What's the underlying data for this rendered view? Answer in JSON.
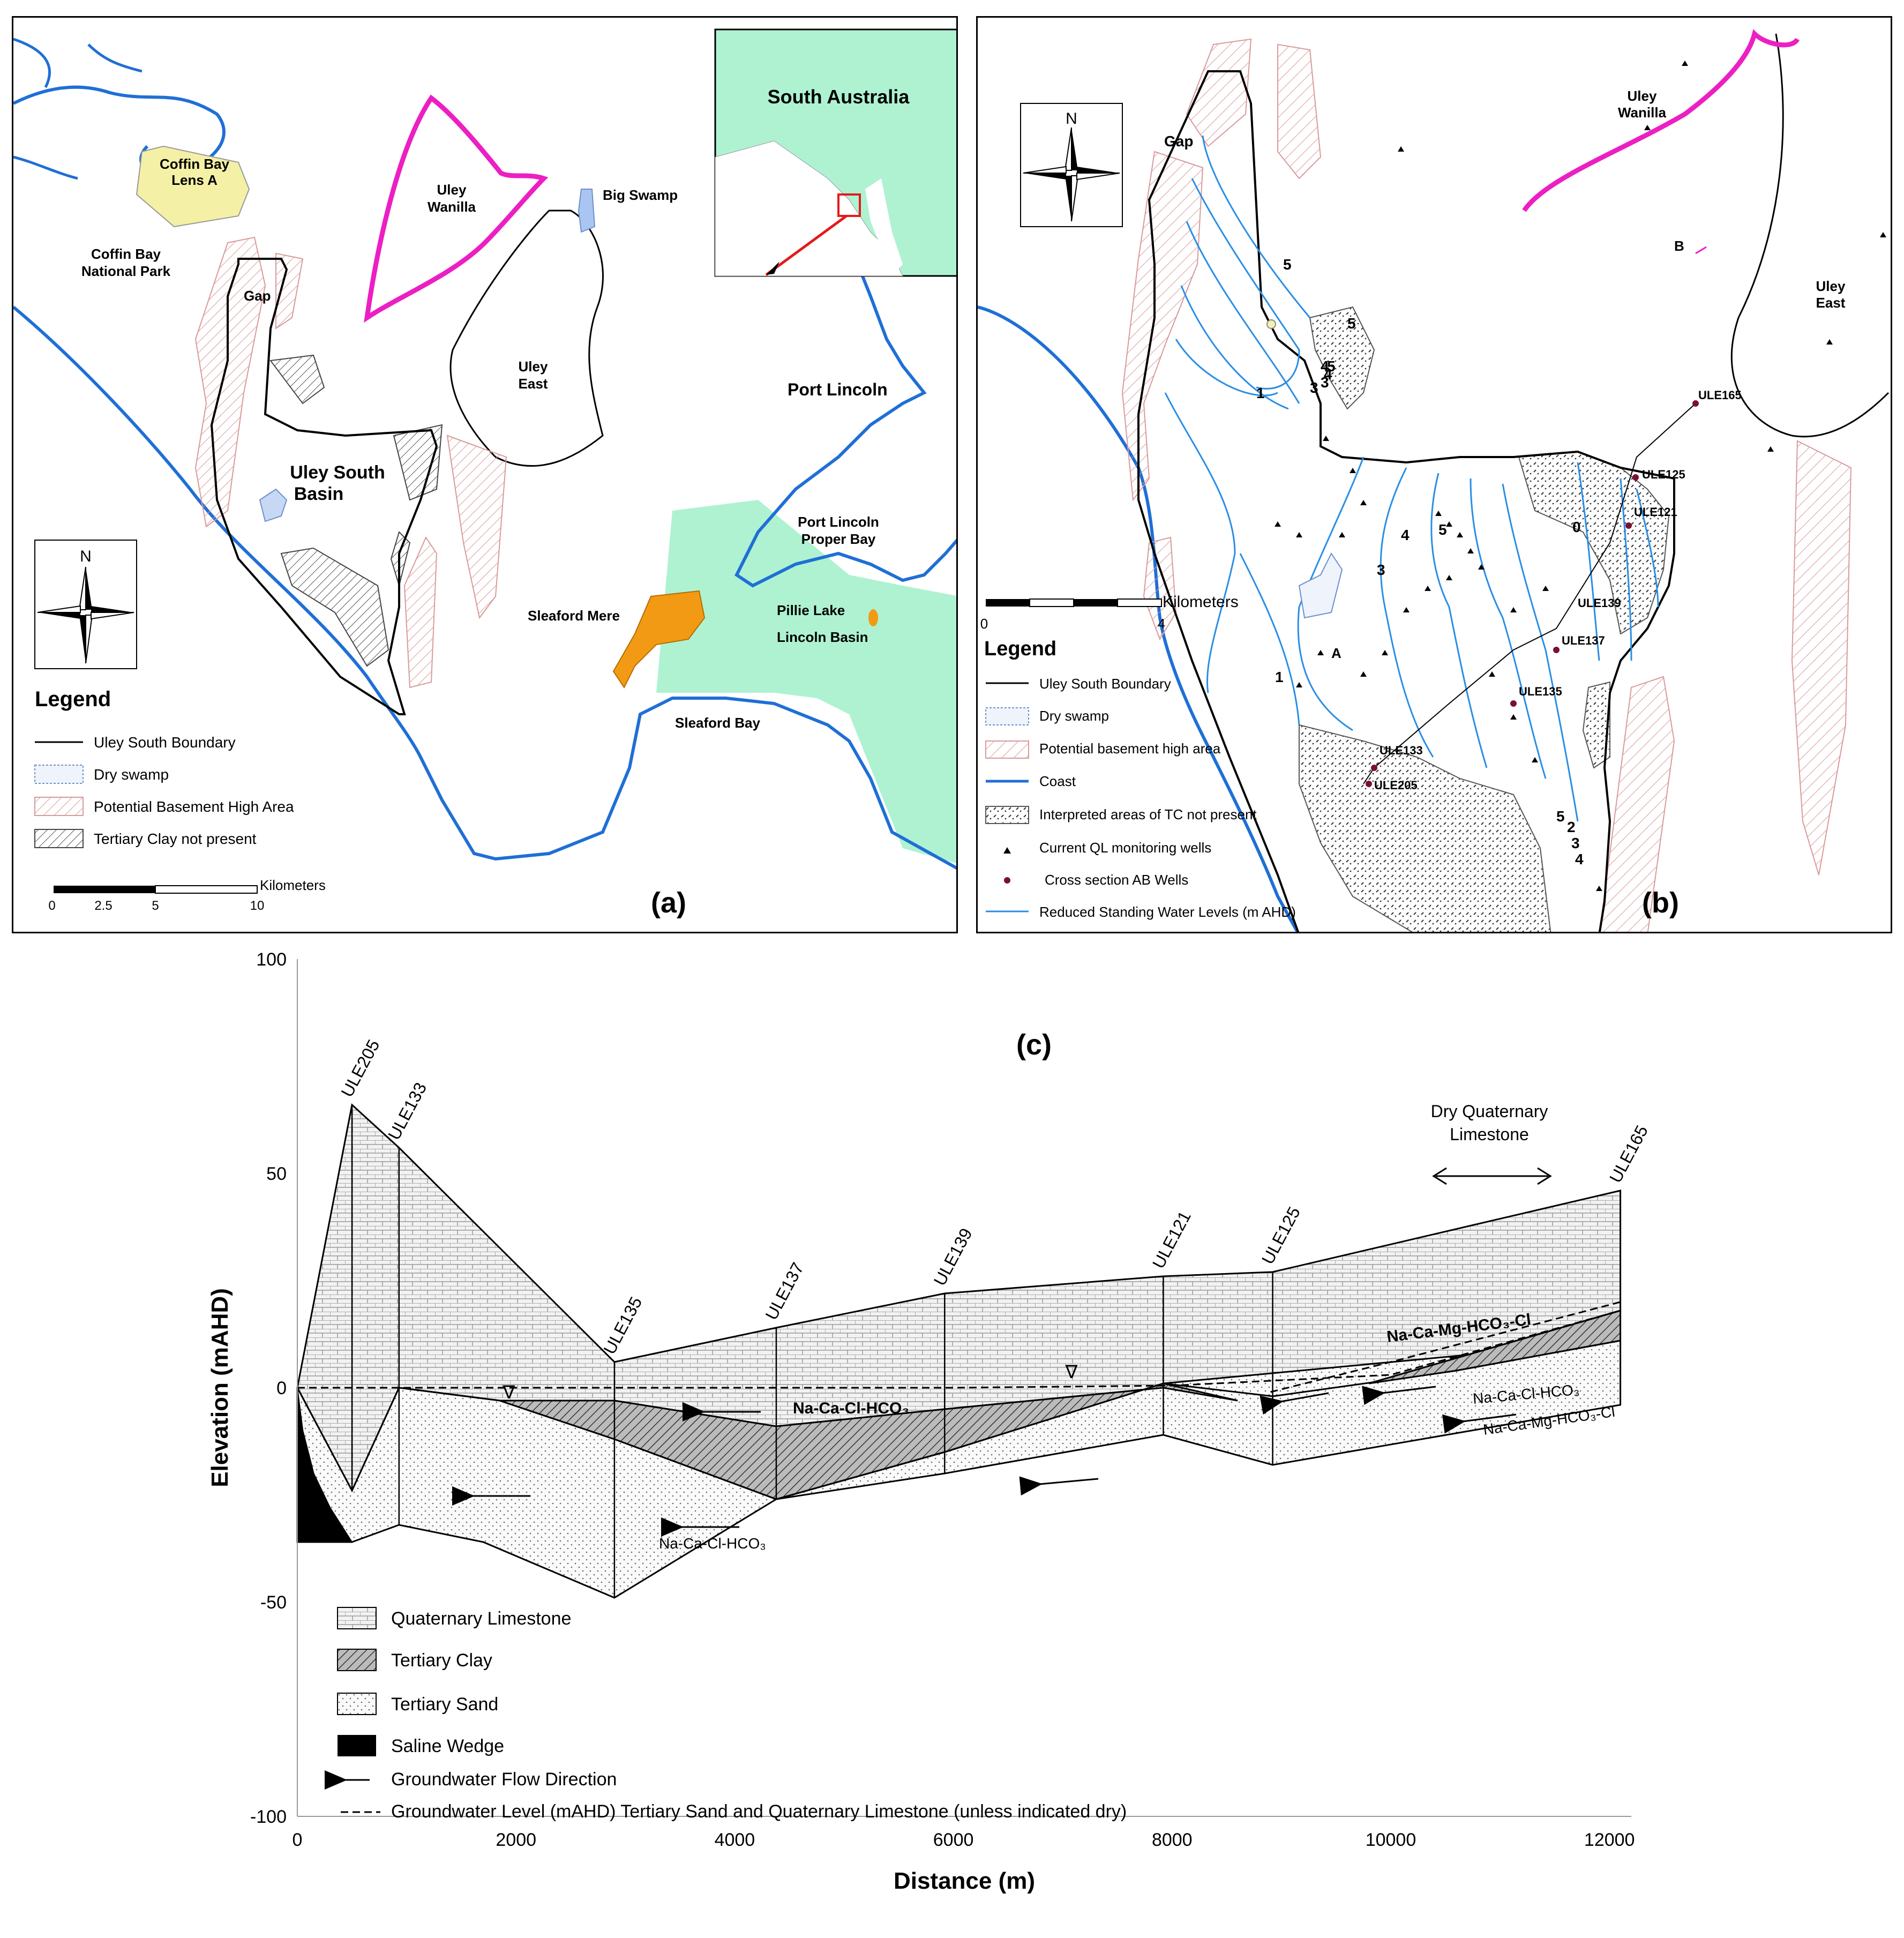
{
  "panel_a": {
    "label": "(a)",
    "places": {
      "coffin_bay_lens": "Coffin Bay\nLens A",
      "coffin_bay_np": "Coffin Bay\nNational Park",
      "gap": "Gap",
      "uley_wanilla": "Uley\nWanilla",
      "big_swamp": "Big Swamp",
      "uley_east": "Uley\nEast",
      "uley_south_basin": "Uley South\nBasin",
      "south_australia": "South Australia",
      "port_lincoln": "Port Lincoln",
      "port_lincoln_proper_bay": "Port Lincoln\nProper Bay",
      "sleaford_mere": "Sleaford Mere",
      "pillie_lake": "Pillie Lake",
      "lincoln_basin": "Lincoln Basin",
      "sleaford_bay": "Sleaford Bay"
    },
    "north": "N",
    "legend": {
      "title": "Legend",
      "items": [
        "Uley South Boundary",
        "Dry swamp",
        "Potential Basement High Area",
        "Tertiary Clay not present"
      ]
    },
    "scalebar": {
      "unit": "Kilometers",
      "ticks": [
        "0",
        "2.5",
        "5",
        "10"
      ]
    },
    "colors": {
      "coast": "#1f6fd6",
      "wanilla": "#ec1fc3",
      "lens": "#f4f0a6",
      "lincoln_basin": "#aef2d2",
      "mere": "#f39a14",
      "hatch_red": "#d99a9a"
    }
  },
  "panel_b": {
    "label": "(b)",
    "places": {
      "gap": "Gap",
      "uley_wanilla": "Uley\nWanilla",
      "uley_east": "Uley\nEast",
      "a": "A",
      "b": "B"
    },
    "north": "N",
    "wells": [
      "ULE165",
      "ULE125",
      "ULE121",
      "ULE139",
      "ULE137",
      "ULE135",
      "ULE133",
      "ULE205"
    ],
    "contour_labels": [
      "5",
      "5",
      "4",
      "3",
      "1",
      "1",
      "3",
      "4",
      "5",
      "2",
      "3",
      "4",
      "5",
      "3",
      "4",
      "5",
      "0"
    ],
    "scalebar": {
      "unit": "Kilometers",
      "ticks": [
        "0",
        "4"
      ]
    },
    "legend": {
      "title": "Legend",
      "items": [
        "Uley South Boundary",
        "Dry swamp",
        "Potential basement high area",
        "Coast",
        "Interpreted areas of TC not present",
        "Current QL monitoring wells",
        "Cross section AB Wells",
        "Reduced Standing Water Levels (m AHD)"
      ]
    },
    "colors": {
      "contour": "#2a8ee6",
      "well_dot": "#7a1030"
    }
  },
  "panel_c": {
    "label": "(c)",
    "chart_data": {
      "type": "cross-section",
      "xlabel": "Distance (m)",
      "ylabel": "Elevation (mAHD)",
      "xlim": [
        0,
        12200
      ],
      "ylim": [
        -100,
        100
      ],
      "xticks": [
        "0",
        "2000",
        "4000",
        "6000",
        "8000",
        "10000",
        "12000"
      ],
      "yticks": [
        "100",
        "50",
        "0",
        "-50",
        "-100"
      ],
      "wells": [
        {
          "name": "ULE205",
          "x": 500,
          "top": 66,
          "bottom": -24
        },
        {
          "name": "ULE133",
          "x": 930,
          "top": 56,
          "bottom": -32
        },
        {
          "name": "ULE135",
          "x": 2900,
          "top": 6,
          "bottom": -49
        },
        {
          "name": "ULE137",
          "x": 4380,
          "top": 14,
          "bottom": -26
        },
        {
          "name": "ULE139",
          "x": 5920,
          "top": 22,
          "bottom": -20
        },
        {
          "name": "ULE121",
          "x": 7920,
          "top": 26,
          "bottom": -11
        },
        {
          "name": "ULE125",
          "x": 8920,
          "top": 27,
          "bottom": -18
        },
        {
          "name": "ULE165",
          "x": 12100,
          "top": 46,
          "bottom": -4
        }
      ],
      "layers": [
        "Quaternary Limestone",
        "Tertiary Clay",
        "Tertiary Sand",
        "Saline Wedge"
      ],
      "annotations": {
        "dry_quaternary": "Dry Quaternary\nLimestone",
        "chem1": "Na-Ca-Cl-HCO₃",
        "chem2": "Na-Ca-Mg-HCO₃-Cl",
        "chem3": "Na-Ca-Cl-HCO₃",
        "chem4": "Na-Ca-Mg-HCO₃-Cl",
        "chem5": "Na-Ca-Cl-HCO₃",
        "wt": "∇"
      },
      "legend": [
        "Quaternary Limestone",
        "Tertiary Clay",
        "Tertiary Sand",
        "Saline Wedge",
        "Groundwater Flow Direction",
        "Groundwater Level (mAHD) Tertiary Sand and Quaternary Limestone (unless indicated dry)"
      ]
    }
  }
}
